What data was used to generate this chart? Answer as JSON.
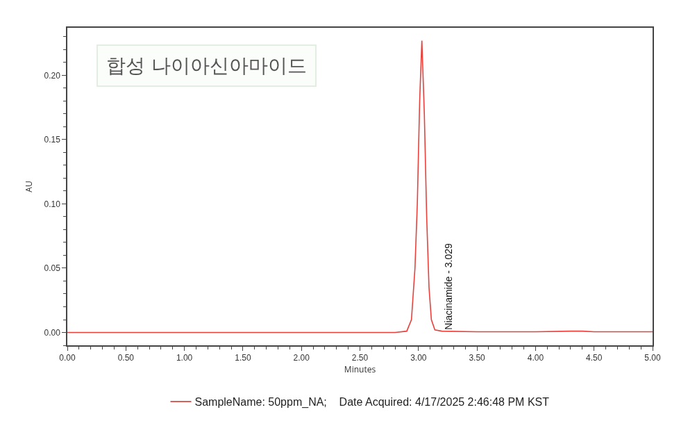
{
  "chart_data": {
    "type": "line",
    "title": "합성 나이아신아마이드",
    "xlabel": "Minutes",
    "ylabel": "AU",
    "x": [
      0,
      1,
      2,
      2.8,
      2.9,
      2.94,
      2.97,
      2.99,
      3.01,
      3.029,
      3.05,
      3.07,
      3.09,
      3.11,
      3.14,
      3.2,
      3.5,
      4,
      4.3,
      4.4,
      4.5,
      5
    ],
    "series": [
      {
        "name": "SampleName: 50ppm_NA;    Date Acquired: 4/17/2025 2:46:48 PM KST",
        "color": "#e8413c",
        "values": [
          0,
          0,
          0,
          0,
          0.001,
          0.01,
          0.05,
          0.1,
          0.18,
          0.227,
          0.17,
          0.09,
          0.035,
          0.01,
          0.002,
          0.001,
          0.0005,
          0.0005,
          0.001,
          0.001,
          0.0005,
          0.0005
        ]
      }
    ],
    "annotations": [
      "Niacinamide - 3.029"
    ],
    "xlim": [
      0,
      5
    ],
    "xticks": [
      {
        "value": 0,
        "label": "0.00"
      },
      {
        "value": 0.5,
        "label": "0.50"
      },
      {
        "value": 1,
        "label": "1.00"
      },
      {
        "value": 1.5,
        "label": "1.50"
      },
      {
        "value": 2,
        "label": "2.00"
      },
      {
        "value": 2.5,
        "label": "2.50"
      },
      {
        "value": 3,
        "label": "3.00"
      },
      {
        "value": 3.5,
        "label": "3.50"
      },
      {
        "value": 4,
        "label": "4.00"
      },
      {
        "value": 4.5,
        "label": "4.50"
      },
      {
        "value": 5,
        "label": "5.00"
      }
    ],
    "ylim": [
      -0.01,
      0.237
    ],
    "yticks": [
      {
        "value": 0,
        "label": "0.00"
      },
      {
        "value": 0.05,
        "label": "0.05"
      },
      {
        "value": 0.1,
        "label": "0.10"
      },
      {
        "value": 0.15,
        "label": "0.15"
      },
      {
        "value": 0.2,
        "label": "0.20"
      }
    ],
    "grid": false,
    "legend": "bottom",
    "marker": "none",
    "line_style": "solid"
  }
}
